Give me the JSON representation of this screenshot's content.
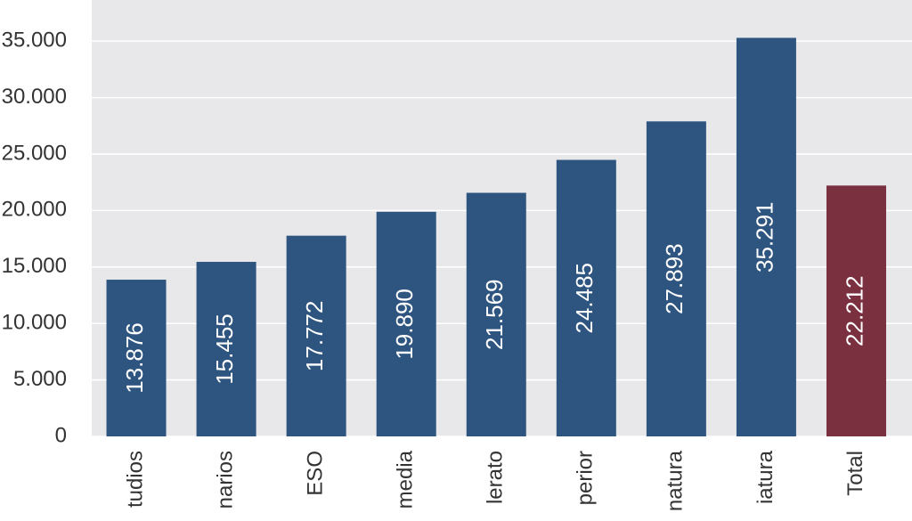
{
  "chart_data": {
    "type": "bar",
    "categories": [
      "tudios",
      "narios",
      "ESO",
      "media",
      "lerato",
      "perior",
      "natura",
      "iatura",
      "Total"
    ],
    "values": [
      13876,
      15455,
      17772,
      19890,
      21569,
      24485,
      27893,
      35291,
      22212
    ],
    "value_labels": [
      "13.876",
      "15.455",
      "17.772",
      "19.890",
      "21.569",
      "24.485",
      "27.893",
      "35.291",
      "22.212"
    ],
    "colors": [
      "#2e5580",
      "#2e5580",
      "#2e5580",
      "#2e5580",
      "#2e5580",
      "#2e5580",
      "#2e5580",
      "#2e5580",
      "#7b3040"
    ],
    "ylim": [
      0,
      38500
    ],
    "yticks": [
      0,
      {
        "value": 5000,
        "label": "5.000"
      },
      {
        "value": 10000,
        "label": "10.000"
      },
      {
        "value": 15000,
        "label": "15.000"
      },
      {
        "value": 20000,
        "label": "20.000"
      },
      {
        "value": 25000,
        "label": "25.000"
      },
      {
        "value": 30000,
        "label": "30.000"
      },
      {
        "value": 35000,
        "label": "35.000"
      }
    ],
    "grid": true
  }
}
